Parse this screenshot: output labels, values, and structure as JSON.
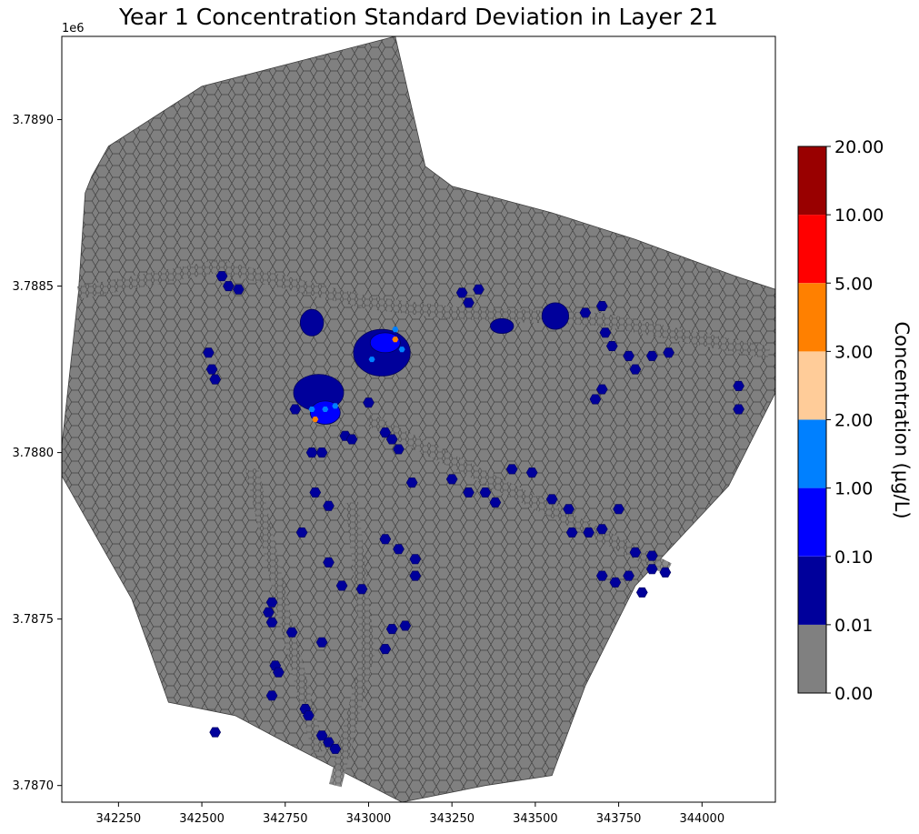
{
  "chart_data": {
    "type": "heatmap",
    "title": "Year 1 Concentration Standard Deviation in Layer 21",
    "xlabel": "",
    "ylabel": "",
    "xlim": [
      342080,
      344220
    ],
    "ylim": [
      3786950,
      3789250
    ],
    "x_ticks": [
      342250,
      342500,
      342750,
      343000,
      343250,
      343500,
      343750,
      344000
    ],
    "y_ticks": [
      3787000,
      3787500,
      3788000,
      3788500,
      3789000
    ],
    "y_tick_labels": [
      "3.7870",
      "3.7875",
      "3.7880",
      "3.7885",
      "3.7890"
    ],
    "y_offset_label": "1e6",
    "grid": false,
    "domain_outline": [
      [
        342150,
        3788780
      ],
      [
        342170,
        3788830
      ],
      [
        342220,
        3788920
      ],
      [
        342500,
        3789100
      ],
      [
        343080,
        3789250
      ],
      [
        343170,
        3788860
      ],
      [
        343250,
        3788800
      ],
      [
        343550,
        3788720
      ],
      [
        343800,
        3788640
      ],
      [
        344100,
        3788530
      ],
      [
        344220,
        3788490
      ],
      [
        344220,
        3788180
      ],
      [
        344080,
        3787900
      ],
      [
        343800,
        3787600
      ],
      [
        343650,
        3787300
      ],
      [
        343550,
        3787030
      ],
      [
        343350,
        3787000
      ],
      [
        343100,
        3786950
      ],
      [
        342750,
        3787130
      ],
      [
        342600,
        3787210
      ],
      [
        342400,
        3787250
      ],
      [
        342290,
        3787560
      ],
      [
        342080,
        3787930
      ],
      [
        342080,
        3788020
      ],
      [
        342130,
        3788480
      ]
    ],
    "colorbar": {
      "label": "Concentration (µg/L)",
      "boundaries": [
        "0.00",
        "0.01",
        "0.10",
        "1.00",
        "2.00",
        "3.00",
        "5.00",
        "10.00",
        "20.00"
      ],
      "colors": [
        "#808080",
        "#00009b",
        "#0000ff",
        "#0080ff",
        "#ffcc99",
        "#ff8000",
        "#ff0000",
        "#990000"
      ]
    },
    "clusters": [
      {
        "x": 342850,
        "y": 3788180,
        "rx": 75,
        "ry": 55,
        "color": "#00009b"
      },
      {
        "x": 342870,
        "y": 3788120,
        "rx": 45,
        "ry": 35,
        "color": "#0000ff"
      },
      {
        "x": 343040,
        "y": 3788300,
        "rx": 85,
        "ry": 70,
        "color": "#00009b"
      },
      {
        "x": 343050,
        "y": 3788330,
        "rx": 45,
        "ry": 30,
        "color": "#0000ff"
      },
      {
        "x": 342830,
        "y": 3788390,
        "rx": 35,
        "ry": 40,
        "color": "#00009b"
      },
      {
        "x": 343400,
        "y": 3788380,
        "rx": 35,
        "ry": 22,
        "color": "#00009b"
      },
      {
        "x": 343560,
        "y": 3788410,
        "rx": 40,
        "ry": 40,
        "color": "#00009b"
      }
    ],
    "highlight_cells": [
      {
        "x": 342840,
        "y": 3788100,
        "color": "#ff8000"
      },
      {
        "x": 343080,
        "y": 3788340,
        "color": "#ff8000"
      },
      {
        "x": 343010,
        "y": 3788280,
        "color": "#0080ff"
      },
      {
        "x": 343100,
        "y": 3788310,
        "color": "#0080ff"
      },
      {
        "x": 343080,
        "y": 3788370,
        "color": "#0080ff"
      },
      {
        "x": 342870,
        "y": 3788130,
        "color": "#0080ff"
      },
      {
        "x": 342900,
        "y": 3788140,
        "color": "#0080ff"
      },
      {
        "x": 342830,
        "y": 3788130,
        "color": "#0080ff"
      }
    ],
    "cells": [
      [
        342560,
        3788530
      ],
      [
        342580,
        3788500
      ],
      [
        342610,
        3788490
      ],
      [
        342520,
        3788300
      ],
      [
        342530,
        3788250
      ],
      [
        342540,
        3788220
      ],
      [
        342780,
        3788130
      ],
      [
        342930,
        3788050
      ],
      [
        342950,
        3788040
      ],
      [
        343000,
        3788150
      ],
      [
        343050,
        3788060
      ],
      [
        343070,
        3788040
      ],
      [
        343090,
        3788010
      ],
      [
        342860,
        3788000
      ],
      [
        343280,
        3788480
      ],
      [
        343330,
        3788490
      ],
      [
        343300,
        3788450
      ],
      [
        343650,
        3788420
      ],
      [
        343700,
        3788440
      ],
      [
        343710,
        3788360
      ],
      [
        343730,
        3788320
      ],
      [
        343780,
        3788290
      ],
      [
        343850,
        3788290
      ],
      [
        343900,
        3788300
      ],
      [
        343800,
        3788250
      ],
      [
        343680,
        3788160
      ],
      [
        343700,
        3788190
      ],
      [
        343130,
        3787910
      ],
      [
        343250,
        3787920
      ],
      [
        343300,
        3787880
      ],
      [
        343350,
        3787880
      ],
      [
        343380,
        3787850
      ],
      [
        343430,
        3787950
      ],
      [
        343490,
        3787940
      ],
      [
        343550,
        3787860
      ],
      [
        343600,
        3787830
      ],
      [
        343610,
        3787760
      ],
      [
        343660,
        3787760
      ],
      [
        343700,
        3787770
      ],
      [
        343750,
        3787830
      ],
      [
        343800,
        3787700
      ],
      [
        343850,
        3787690
      ],
      [
        343850,
        3787650
      ],
      [
        343890,
        3787640
      ],
      [
        343700,
        3787630
      ],
      [
        343740,
        3787610
      ],
      [
        343780,
        3787630
      ],
      [
        343820,
        3787580
      ],
      [
        342840,
        3787880
      ],
      [
        342880,
        3787840
      ],
      [
        342800,
        3787760
      ],
      [
        342880,
        3787670
      ],
      [
        342920,
        3787600
      ],
      [
        342980,
        3787590
      ],
      [
        343050,
        3787740
      ],
      [
        343090,
        3787710
      ],
      [
        343140,
        3787680
      ],
      [
        343140,
        3787630
      ],
      [
        343050,
        3787410
      ],
      [
        343110,
        3787480
      ],
      [
        343070,
        3787470
      ],
      [
        342700,
        3787520
      ],
      [
        342710,
        3787490
      ],
      [
        342770,
        3787460
      ],
      [
        342860,
        3787430
      ],
      [
        342720,
        3787360
      ],
      [
        342730,
        3787340
      ],
      [
        342710,
        3787270
      ],
      [
        342810,
        3787230
      ],
      [
        342820,
        3787210
      ],
      [
        342860,
        3787150
      ],
      [
        342880,
        3787130
      ],
      [
        342900,
        3787110
      ],
      [
        342540,
        3787160
      ],
      [
        344110,
        3788200
      ],
      [
        344110,
        3788130
      ],
      [
        342710,
        3787550
      ],
      [
        342830,
        3788000
      ]
    ]
  }
}
